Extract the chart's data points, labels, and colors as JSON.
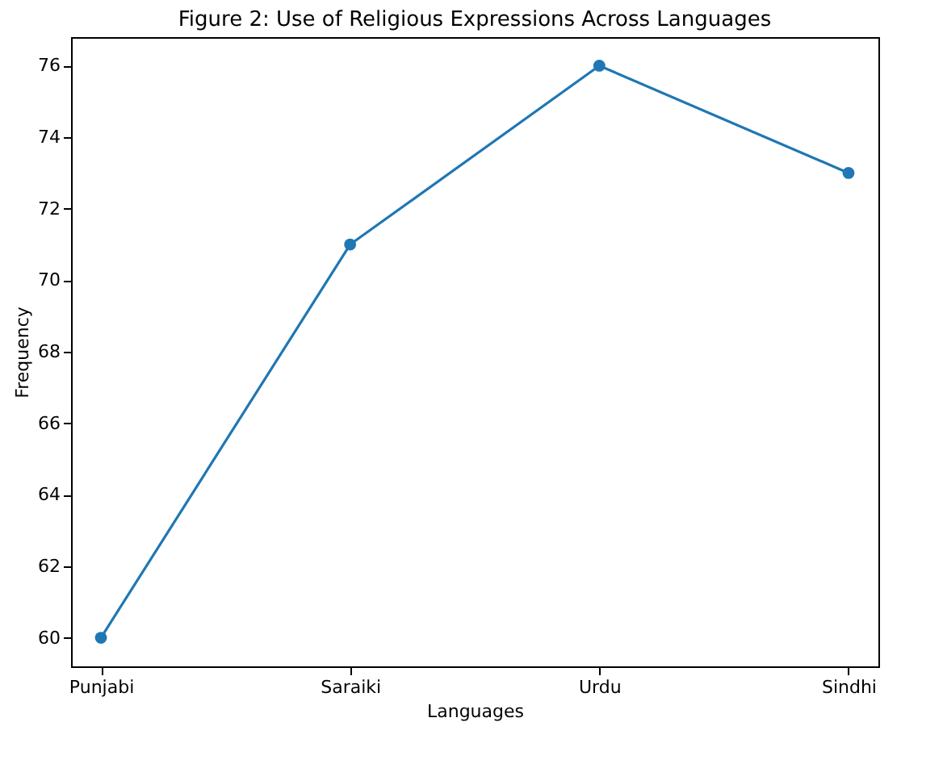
{
  "chart_data": {
    "type": "line",
    "title": "Figure 2: Use of Religious Expressions Across Languages",
    "xlabel": "Languages",
    "ylabel": "Frequency",
    "categories": [
      "Punjabi",
      "Saraiki",
      "Urdu",
      "Sindhi"
    ],
    "series": [
      {
        "color": "#1f77b4",
        "values": [
          60,
          71,
          76,
          73
        ]
      }
    ],
    "ylim": [
      59.2,
      76.8
    ],
    "yticks": [
      60,
      62,
      64,
      66,
      68,
      70,
      72,
      74,
      76
    ],
    "grid": false,
    "marker": "circle",
    "line_style": "solid",
    "legend": false
  }
}
